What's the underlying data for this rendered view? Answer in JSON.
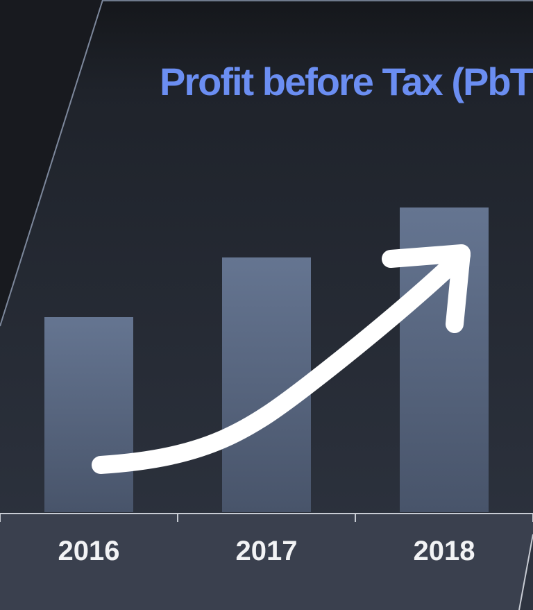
{
  "chart_data": {
    "type": "bar",
    "title": "Profit before Tax (PbT",
    "categories": [
      "2016",
      "2017",
      "2018"
    ],
    "values": [
      281,
      367,
      439
    ],
    "color": "#5c6b85"
  }
}
